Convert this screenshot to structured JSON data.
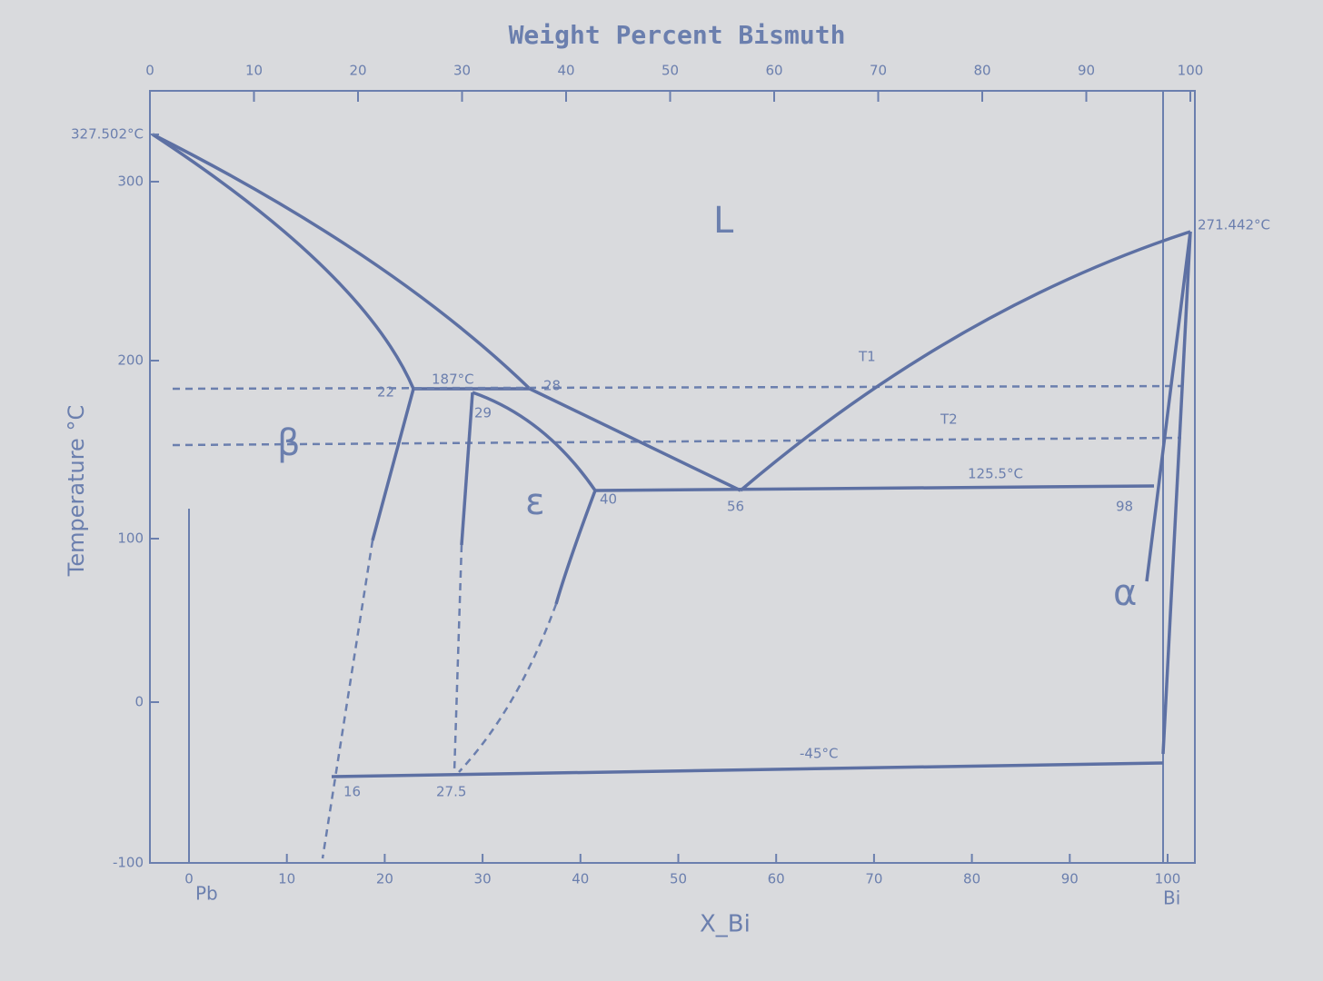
{
  "title": "Weight Percent Bismuth",
  "top_ticks": [
    "0",
    "10",
    "20",
    "30",
    "40",
    "50",
    "60",
    "70",
    "80",
    "90",
    "100"
  ],
  "left_axis": {
    "label": "Temperature °C",
    "ticks": [
      "327.502°C",
      "300",
      "200",
      "100",
      "0",
      "-100"
    ]
  },
  "bottom_ticks": [
    "0",
    "10",
    "20",
    "30",
    "40",
    "50",
    "60",
    "70",
    "80",
    "90",
    "100"
  ],
  "bottom_axis": {
    "label": "X_Bi",
    "left_end": "Pb",
    "right_end": "Bi"
  },
  "phases": [
    "L",
    "β",
    "ε",
    "α",
    "T1",
    "T2"
  ],
  "annotations": [
    "271.442°C",
    "187°C",
    "125.5°C",
    "-45°C",
    "22",
    "28",
    "29",
    "40",
    "56",
    "98",
    "16",
    "27.5"
  ]
}
